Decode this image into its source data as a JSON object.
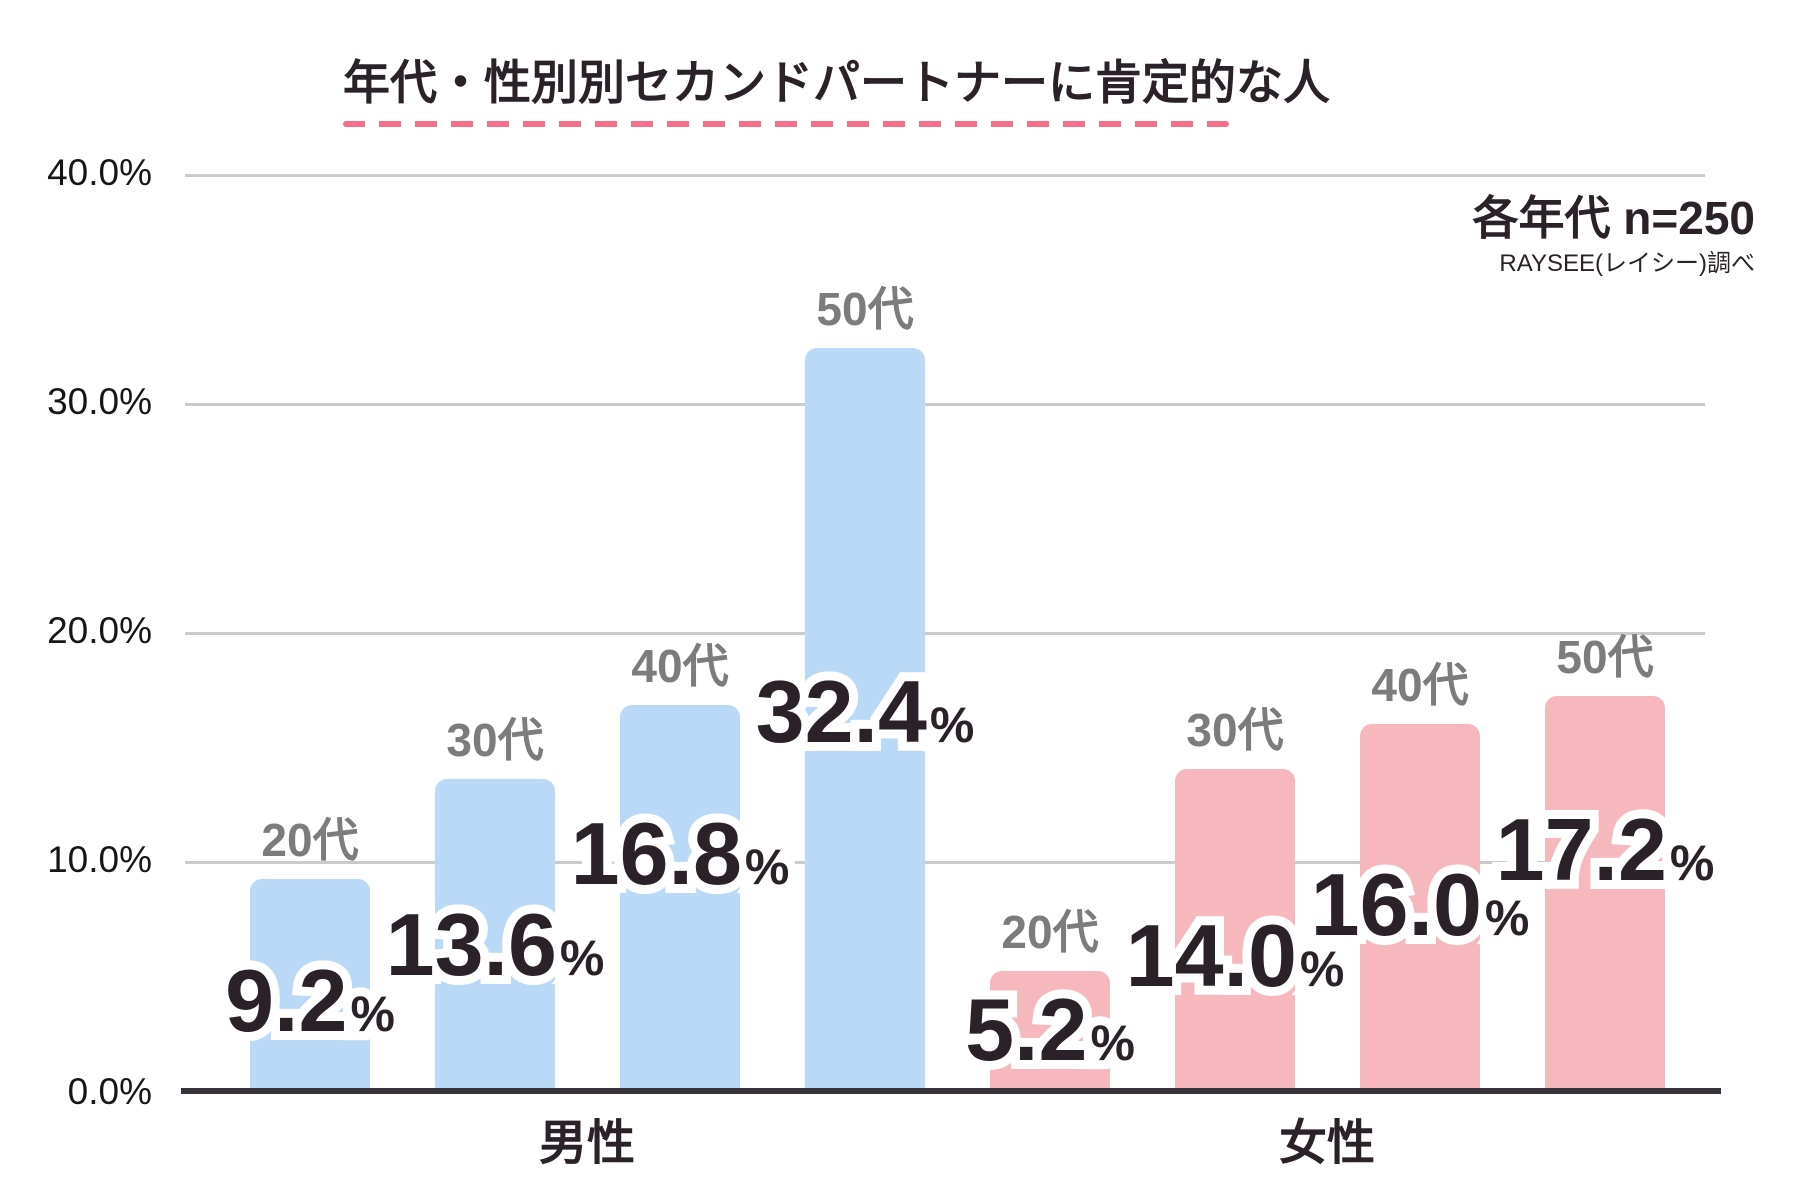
{
  "title": "年代・性別別セカンドパートナーに肯定的な人",
  "note": {
    "sample_size": "各年代 n=250",
    "source": "RAYSEE(レイシー)調べ"
  },
  "y_axis": {
    "tick_labels": [
      "40.0%",
      "30.0%",
      "20.0%",
      "10.0%",
      "0.0%"
    ],
    "min": 0,
    "max": 40
  },
  "x_axis": {
    "group_labels": [
      "男性",
      "女性"
    ]
  },
  "colors": {
    "male_bar": "#b9d9f7",
    "female_bar": "#f7b8bd",
    "accent_dash": "#f4708a",
    "dark_text": "#2b2129",
    "age_label_gray": "#7c7c7c",
    "gridline": "#cbcbcb",
    "axis": "#38333a"
  },
  "chart_data": {
    "type": "bar",
    "categories": [
      "20代",
      "30代",
      "40代",
      "50代"
    ],
    "series": [
      {
        "name": "男性",
        "color": "#b9d9f7",
        "values": [
          9.2,
          13.6,
          16.8,
          32.4
        ]
      },
      {
        "name": "女性",
        "color": "#f7b8bd",
        "values": [
          5.2,
          14.0,
          16.0,
          17.2
        ]
      }
    ],
    "value_labels": [
      "9.2%",
      "13.6%",
      "16.8%",
      "32.4%",
      "5.2%",
      "14.0%",
      "16.0%",
      "17.2%"
    ],
    "title": "年代・性別別セカンドパートナーに肯定的な人",
    "annotation": "各年代 n=250",
    "source": "RAYSEE(レイシー)調べ",
    "xlabel": "",
    "ylabel": "",
    "ylim": [
      0,
      40
    ],
    "grid": true,
    "legend": false
  }
}
